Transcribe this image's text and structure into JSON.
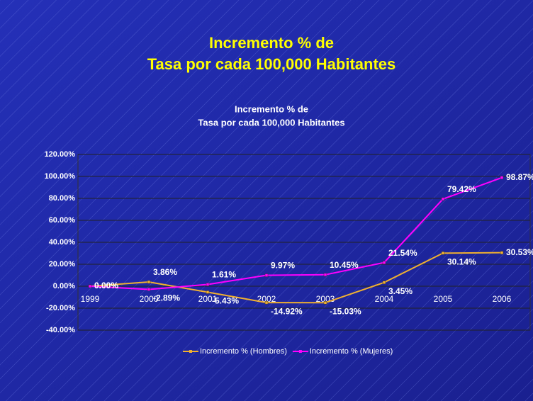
{
  "slide_title": [
    "Incremento % de",
    "Tasa por cada 100,000 Habitantes"
  ],
  "chart_data": {
    "type": "line",
    "title": [
      "Incremento % de",
      "Tasa por cada 100,000 Habitantes"
    ],
    "categories": [
      "1999",
      "2000",
      "2001",
      "2002",
      "2003",
      "2004",
      "2005",
      "2006"
    ],
    "series": [
      {
        "name": "Incremento % (Hombres)",
        "color": "#f0b030",
        "values": [
          0,
          3.86,
          -5.43,
          -14.92,
          -15.03,
          3.45,
          30.14,
          30.53
        ],
        "value_labels": [
          "0.00%",
          "3.86%",
          "-5.43%",
          "-14.92%",
          "-15.03%",
          "3.45%",
          "30.14%",
          "30.53%"
        ]
      },
      {
        "name": "Incremento % (Mujeres)",
        "color": "#ff00ff",
        "values": [
          0,
          -2.89,
          1.61,
          9.97,
          10.45,
          21.54,
          79.42,
          98.87
        ],
        "value_labels": [
          "0.00%",
          "-2.89%",
          "1.61%",
          "9.97%",
          "10.45%",
          "21.54%",
          "79.42%",
          "98.87%"
        ]
      }
    ],
    "ylim": [
      -40,
      120
    ],
    "yticks": [
      {
        "value": -40,
        "label": "-40.00%"
      },
      {
        "value": -20,
        "label": "-20.00%"
      },
      {
        "value": 0,
        "label": "0.00%"
      },
      {
        "value": 20,
        "label": "20.00%"
      },
      {
        "value": 40,
        "label": "40.00%"
      },
      {
        "value": 60,
        "label": "60.00%"
      },
      {
        "value": 80,
        "label": "80.00%"
      },
      {
        "value": 100,
        "label": "100.00%"
      },
      {
        "value": 120,
        "label": "120.00%"
      }
    ],
    "grid": true,
    "legend": "bottom"
  }
}
